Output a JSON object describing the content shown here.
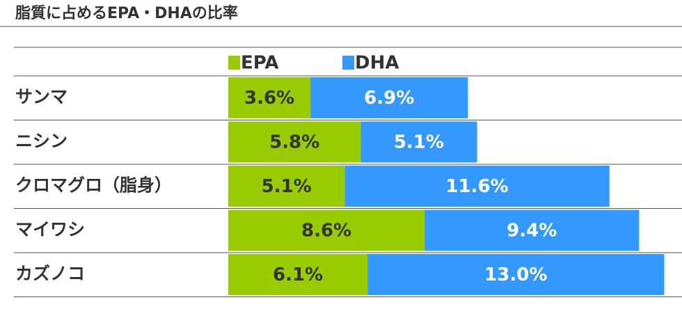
{
  "chart_data": {
    "type": "stacked-bar-horizontal",
    "title": "脂質に占めるEPA・DHAの比率",
    "categories": [
      "サンマ",
      "ニシン",
      "クロマグロ（脂身）",
      "マイワシ",
      "カズノコ"
    ],
    "series": [
      {
        "name": "EPA",
        "color": "#99cc00",
        "values": [
          3.6,
          5.8,
          5.1,
          8.6,
          6.1
        ],
        "value_labels": [
          "3.6%",
          "5.8%",
          "5.1%",
          "8.6%",
          "6.1%"
        ]
      },
      {
        "name": "DHA",
        "color": "#3399ff",
        "values": [
          6.9,
          5.1,
          11.6,
          9.4,
          13.0
        ],
        "value_labels": [
          "6.9%",
          "5.1%",
          "11.6%",
          "9.4%",
          "13.0%"
        ]
      }
    ]
  }
}
